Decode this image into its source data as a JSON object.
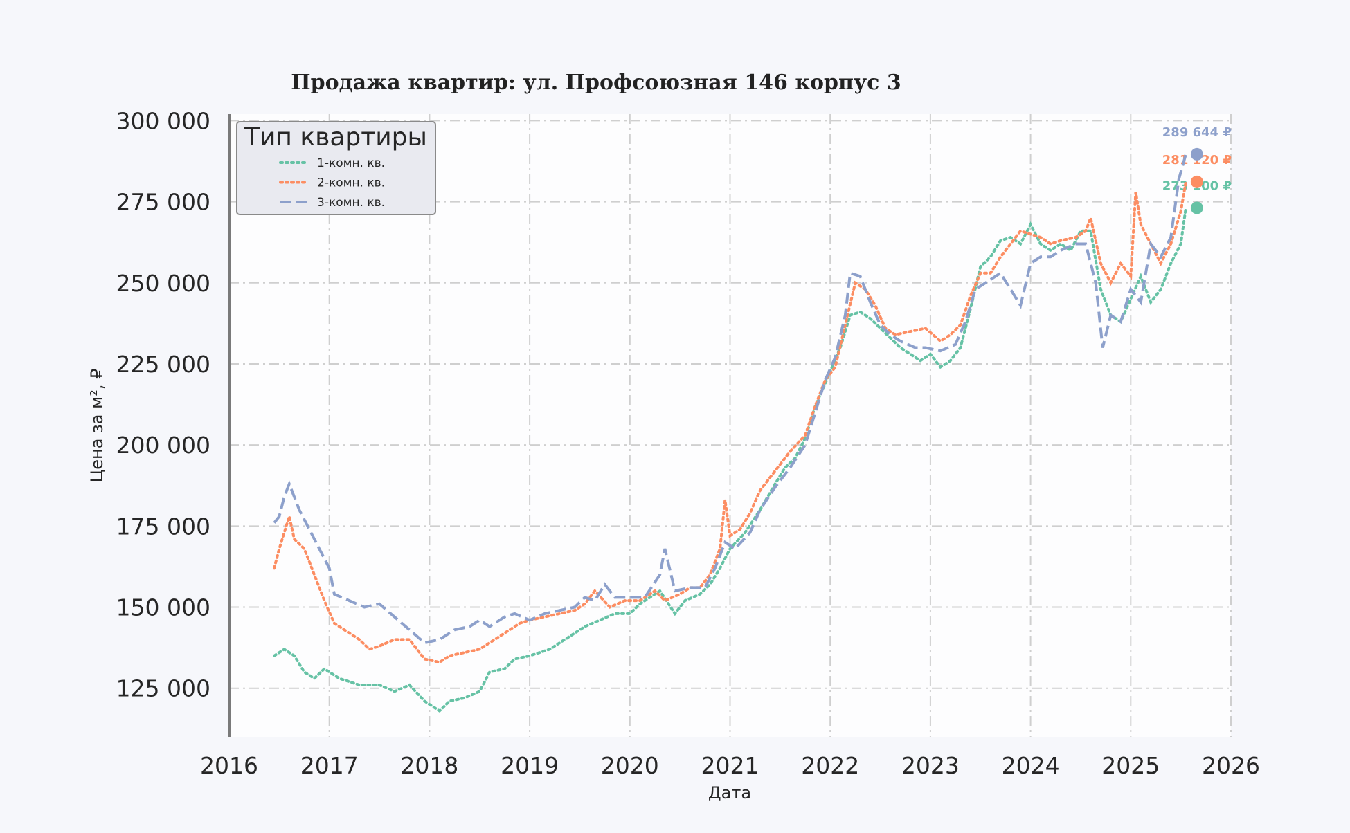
{
  "chart_data": {
    "type": "line",
    "title": "Продажа квартир: ул. Профсоюзная 146 корпус 3",
    "xlabel": "Дата",
    "ylabel": "Цена за м², ₽",
    "xlim": [
      2016,
      2026
    ],
    "ylim": [
      110000,
      302000
    ],
    "x_ticks": [
      "2016",
      "2017",
      "2018",
      "2019",
      "2020",
      "2021",
      "2022",
      "2023",
      "2024",
      "2025",
      "2026"
    ],
    "y_ticks": [
      {
        "value": 125000,
        "label": "125 000"
      },
      {
        "value": 150000,
        "label": "150 000"
      },
      {
        "value": 175000,
        "label": "175 000"
      },
      {
        "value": 200000,
        "label": "200 000"
      },
      {
        "value": 225000,
        "label": "225 000"
      },
      {
        "value": 250000,
        "label": "250 000"
      },
      {
        "value": 275000,
        "label": "275 000"
      },
      {
        "value": 300000,
        "label": "300 000"
      }
    ],
    "grid": true,
    "legend": {
      "title": "Тип квартиры",
      "position": "top-left"
    },
    "series": [
      {
        "name": "1-комн. кв.",
        "color": "#66c2a5",
        "dash": "dotted",
        "end_label": "273 100 ₽",
        "points": [
          [
            2016.45,
            135000
          ],
          [
            2016.55,
            137000
          ],
          [
            2016.65,
            135000
          ],
          [
            2016.75,
            130000
          ],
          [
            2016.85,
            128000
          ],
          [
            2016.95,
            131000
          ],
          [
            2017.1,
            128000
          ],
          [
            2017.3,
            126000
          ],
          [
            2017.5,
            126000
          ],
          [
            2017.65,
            124000
          ],
          [
            2017.8,
            126000
          ],
          [
            2017.95,
            121000
          ],
          [
            2018.1,
            118000
          ],
          [
            2018.2,
            121000
          ],
          [
            2018.35,
            122000
          ],
          [
            2018.5,
            124000
          ],
          [
            2018.6,
            130000
          ],
          [
            2018.75,
            131000
          ],
          [
            2018.85,
            134000
          ],
          [
            2019.0,
            135000
          ],
          [
            2019.2,
            137000
          ],
          [
            2019.4,
            141000
          ],
          [
            2019.55,
            144000
          ],
          [
            2019.7,
            146000
          ],
          [
            2019.85,
            148000
          ],
          [
            2020.0,
            148000
          ],
          [
            2020.1,
            151000
          ],
          [
            2020.2,
            153000
          ],
          [
            2020.3,
            155000
          ],
          [
            2020.45,
            148000
          ],
          [
            2020.55,
            152000
          ],
          [
            2020.7,
            154000
          ],
          [
            2020.8,
            157000
          ],
          [
            2020.9,
            162000
          ],
          [
            2021.0,
            168000
          ],
          [
            2021.15,
            173000
          ],
          [
            2021.3,
            180000
          ],
          [
            2021.45,
            188000
          ],
          [
            2021.55,
            193000
          ],
          [
            2021.65,
            196000
          ],
          [
            2021.75,
            202000
          ],
          [
            2021.85,
            212000
          ],
          [
            2021.95,
            219000
          ],
          [
            2022.1,
            230000
          ],
          [
            2022.2,
            240000
          ],
          [
            2022.3,
            241000
          ],
          [
            2022.4,
            239000
          ],
          [
            2022.5,
            236000
          ],
          [
            2022.6,
            233000
          ],
          [
            2022.7,
            230000
          ],
          [
            2022.8,
            228000
          ],
          [
            2022.9,
            226000
          ],
          [
            2023.0,
            228000
          ],
          [
            2023.1,
            224000
          ],
          [
            2023.2,
            226000
          ],
          [
            2023.3,
            230000
          ],
          [
            2023.4,
            242000
          ],
          [
            2023.5,
            255000
          ],
          [
            2023.6,
            258000
          ],
          [
            2023.7,
            263000
          ],
          [
            2023.8,
            264000
          ],
          [
            2023.9,
            262000
          ],
          [
            2024.0,
            268000
          ],
          [
            2024.1,
            262000
          ],
          [
            2024.2,
            260000
          ],
          [
            2024.3,
            262000
          ],
          [
            2024.4,
            260000
          ],
          [
            2024.5,
            266000
          ],
          [
            2024.6,
            266000
          ],
          [
            2024.7,
            248000
          ],
          [
            2024.8,
            240000
          ],
          [
            2024.9,
            238000
          ],
          [
            2025.0,
            245000
          ],
          [
            2025.1,
            252000
          ],
          [
            2025.2,
            244000
          ],
          [
            2025.3,
            248000
          ],
          [
            2025.4,
            256000
          ],
          [
            2025.5,
            262000
          ],
          [
            2025.55,
            273100
          ]
        ]
      },
      {
        "name": "2-комн. кв.",
        "color": "#fc8d62",
        "dash": "dotted",
        "end_label": "281 120 ₽",
        "points": [
          [
            2016.45,
            162000
          ],
          [
            2016.5,
            168000
          ],
          [
            2016.6,
            178000
          ],
          [
            2016.65,
            171000
          ],
          [
            2016.75,
            168000
          ],
          [
            2016.85,
            160000
          ],
          [
            2016.95,
            152000
          ],
          [
            2017.05,
            145000
          ],
          [
            2017.15,
            143000
          ],
          [
            2017.3,
            140000
          ],
          [
            2017.4,
            137000
          ],
          [
            2017.5,
            138000
          ],
          [
            2017.65,
            140000
          ],
          [
            2017.8,
            140000
          ],
          [
            2017.95,
            134000
          ],
          [
            2018.1,
            133000
          ],
          [
            2018.2,
            135000
          ],
          [
            2018.35,
            136000
          ],
          [
            2018.5,
            137000
          ],
          [
            2018.6,
            139000
          ],
          [
            2018.75,
            142000
          ],
          [
            2018.9,
            145000
          ],
          [
            2019.0,
            146000
          ],
          [
            2019.15,
            147000
          ],
          [
            2019.3,
            148000
          ],
          [
            2019.45,
            149000
          ],
          [
            2019.55,
            151000
          ],
          [
            2019.65,
            155000
          ],
          [
            2019.8,
            150000
          ],
          [
            2019.95,
            152000
          ],
          [
            2020.1,
            152000
          ],
          [
            2020.25,
            155000
          ],
          [
            2020.35,
            152000
          ],
          [
            2020.5,
            154000
          ],
          [
            2020.6,
            156000
          ],
          [
            2020.7,
            156000
          ],
          [
            2020.8,
            160000
          ],
          [
            2020.9,
            168000
          ],
          [
            2020.95,
            183000
          ],
          [
            2021.0,
            172000
          ],
          [
            2021.1,
            174000
          ],
          [
            2021.2,
            179000
          ],
          [
            2021.3,
            186000
          ],
          [
            2021.45,
            192000
          ],
          [
            2021.6,
            198000
          ],
          [
            2021.75,
            203000
          ],
          [
            2021.85,
            212000
          ],
          [
            2021.95,
            220000
          ],
          [
            2022.05,
            224000
          ],
          [
            2022.15,
            237000
          ],
          [
            2022.25,
            250000
          ],
          [
            2022.35,
            248000
          ],
          [
            2022.45,
            243000
          ],
          [
            2022.55,
            236000
          ],
          [
            2022.65,
            234000
          ],
          [
            2022.8,
            235000
          ],
          [
            2022.95,
            236000
          ],
          [
            2023.1,
            232000
          ],
          [
            2023.2,
            234000
          ],
          [
            2023.3,
            237000
          ],
          [
            2023.4,
            246000
          ],
          [
            2023.5,
            253000
          ],
          [
            2023.6,
            253000
          ],
          [
            2023.7,
            258000
          ],
          [
            2023.8,
            262000
          ],
          [
            2023.9,
            266000
          ],
          [
            2024.0,
            265000
          ],
          [
            2024.1,
            264000
          ],
          [
            2024.2,
            262000
          ],
          [
            2024.3,
            263000
          ],
          [
            2024.45,
            264000
          ],
          [
            2024.55,
            266000
          ],
          [
            2024.6,
            270000
          ],
          [
            2024.7,
            256000
          ],
          [
            2024.8,
            250000
          ],
          [
            2024.9,
            256000
          ],
          [
            2025.0,
            252000
          ],
          [
            2025.05,
            278000
          ],
          [
            2025.1,
            268000
          ],
          [
            2025.2,
            262000
          ],
          [
            2025.3,
            256000
          ],
          [
            2025.4,
            262000
          ],
          [
            2025.5,
            272000
          ],
          [
            2025.55,
            281120
          ]
        ]
      },
      {
        "name": "3-комн. кв.",
        "color": "#8da0cb",
        "dash": "dashed",
        "end_label": "289 644 ₽",
        "points": [
          [
            2016.45,
            176000
          ],
          [
            2016.5,
            178000
          ],
          [
            2016.55,
            184000
          ],
          [
            2016.6,
            188000
          ],
          [
            2016.7,
            180000
          ],
          [
            2016.8,
            174000
          ],
          [
            2016.9,
            168000
          ],
          [
            2017.0,
            162000
          ],
          [
            2017.05,
            154000
          ],
          [
            2017.2,
            152000
          ],
          [
            2017.35,
            150000
          ],
          [
            2017.5,
            151000
          ],
          [
            2017.65,
            147000
          ],
          [
            2017.8,
            143000
          ],
          [
            2017.95,
            139000
          ],
          [
            2018.1,
            140000
          ],
          [
            2018.25,
            143000
          ],
          [
            2018.4,
            144000
          ],
          [
            2018.5,
            146000
          ],
          [
            2018.6,
            144000
          ],
          [
            2018.75,
            147000
          ],
          [
            2018.85,
            148000
          ],
          [
            2019.0,
            146000
          ],
          [
            2019.15,
            148000
          ],
          [
            2019.3,
            149000
          ],
          [
            2019.45,
            150000
          ],
          [
            2019.55,
            153000
          ],
          [
            2019.65,
            152000
          ],
          [
            2019.75,
            157000
          ],
          [
            2019.85,
            153000
          ],
          [
            2020.0,
            153000
          ],
          [
            2020.15,
            153000
          ],
          [
            2020.3,
            160000
          ],
          [
            2020.35,
            168000
          ],
          [
            2020.45,
            155000
          ],
          [
            2020.6,
            156000
          ],
          [
            2020.75,
            156000
          ],
          [
            2020.85,
            162000
          ],
          [
            2020.95,
            170000
          ],
          [
            2021.05,
            168000
          ],
          [
            2021.2,
            173000
          ],
          [
            2021.3,
            180000
          ],
          [
            2021.45,
            187000
          ],
          [
            2021.6,
            193000
          ],
          [
            2021.75,
            200000
          ],
          [
            2021.85,
            210000
          ],
          [
            2021.95,
            220000
          ],
          [
            2022.05,
            227000
          ],
          [
            2022.15,
            240000
          ],
          [
            2022.2,
            253000
          ],
          [
            2022.3,
            252000
          ],
          [
            2022.4,
            244000
          ],
          [
            2022.5,
            237000
          ],
          [
            2022.6,
            234000
          ],
          [
            2022.7,
            232000
          ],
          [
            2022.85,
            230000
          ],
          [
            2022.95,
            230000
          ],
          [
            2023.1,
            229000
          ],
          [
            2023.25,
            231000
          ],
          [
            2023.35,
            238000
          ],
          [
            2023.45,
            248000
          ],
          [
            2023.55,
            250000
          ],
          [
            2023.7,
            253000
          ],
          [
            2023.8,
            248000
          ],
          [
            2023.9,
            243000
          ],
          [
            2024.0,
            256000
          ],
          [
            2024.1,
            258000
          ],
          [
            2024.2,
            258000
          ],
          [
            2024.3,
            260000
          ],
          [
            2024.45,
            262000
          ],
          [
            2024.55,
            262000
          ],
          [
            2024.65,
            250000
          ],
          [
            2024.72,
            230000
          ],
          [
            2024.8,
            240000
          ],
          [
            2024.9,
            238000
          ],
          [
            2025.0,
            248000
          ],
          [
            2025.1,
            244000
          ],
          [
            2025.2,
            262000
          ],
          [
            2025.3,
            258000
          ],
          [
            2025.4,
            264000
          ],
          [
            2025.48,
            282000
          ],
          [
            2025.55,
            289644
          ]
        ]
      }
    ]
  }
}
